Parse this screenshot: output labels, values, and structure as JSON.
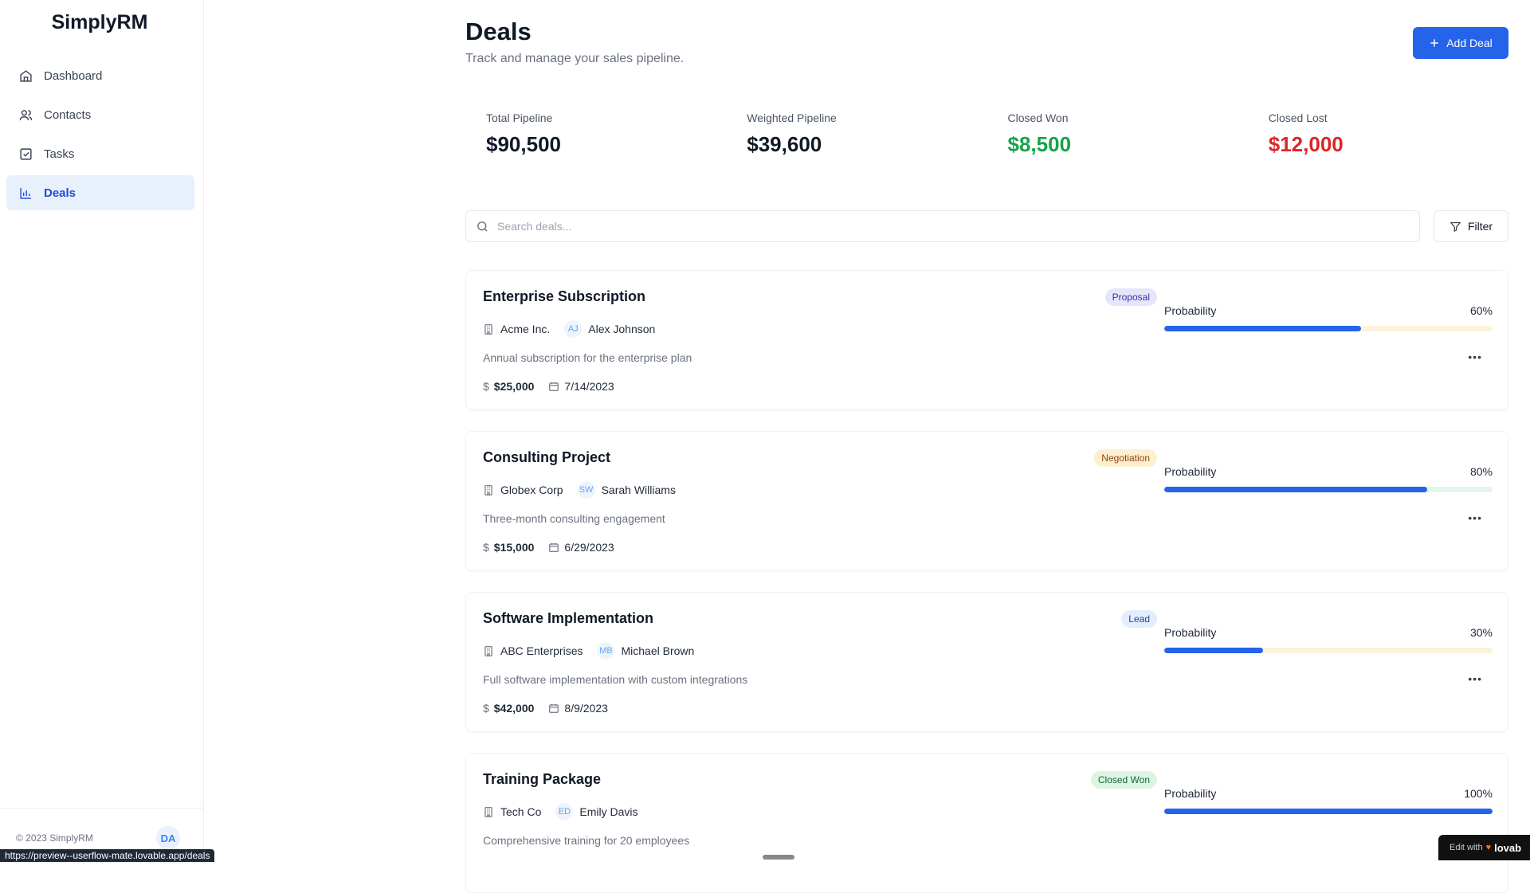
{
  "app": {
    "name": "SimplyRM",
    "copyright": "© 2023 SimplyRM",
    "user_initials": "DA",
    "status_url": "https://preview--userflow-mate.lovable.app/deals"
  },
  "sidebar": {
    "items": [
      {
        "label": "Dashboard",
        "icon": "home-icon"
      },
      {
        "label": "Contacts",
        "icon": "users-icon"
      },
      {
        "label": "Tasks",
        "icon": "check-square-icon"
      },
      {
        "label": "Deals",
        "icon": "bar-chart-icon",
        "active": true
      }
    ]
  },
  "header": {
    "title": "Deals",
    "subtitle": "Track and manage your sales pipeline.",
    "add_label": "Add Deal"
  },
  "stats": [
    {
      "label": "Total Pipeline",
      "value": "$90,500",
      "color": "#111827"
    },
    {
      "label": "Weighted Pipeline",
      "value": "$39,600",
      "color": "#111827"
    },
    {
      "label": "Closed Won",
      "value": "$8,500",
      "color": "#16a34a"
    },
    {
      "label": "Closed Lost",
      "value": "$12,000",
      "color": "#dc2626"
    }
  ],
  "search": {
    "placeholder": "Search deals...",
    "filter_label": "Filter"
  },
  "deals": [
    {
      "title": "Enterprise Subscription",
      "stage": "Proposal",
      "stage_bg": "#e6e6fb",
      "stage_fg": "#3730a3",
      "company": "Acme Inc.",
      "initials": "AJ",
      "contact": "Alex Johnson",
      "description": "Annual subscription for the enterprise plan",
      "amount": "$25,000",
      "date": "7/14/2023",
      "probability_label": "Probability",
      "probability": 60,
      "probability_text": "60%",
      "track": "#fdf3d9"
    },
    {
      "title": "Consulting Project",
      "stage": "Negotiation",
      "stage_bg": "#fdf0cf",
      "stage_fg": "#92400e",
      "company": "Globex Corp",
      "initials": "SW",
      "contact": "Sarah Williams",
      "description": "Three-month consulting engagement",
      "amount": "$15,000",
      "date": "6/29/2023",
      "probability_label": "Probability",
      "probability": 80,
      "probability_text": "80%",
      "track": "#e3f6ea"
    },
    {
      "title": "Software Implementation",
      "stage": "Lead",
      "stage_bg": "#e3edfc",
      "stage_fg": "#1e40af",
      "company": "ABC Enterprises",
      "initials": "MB",
      "contact": "Michael Brown",
      "description": "Full software implementation with custom integrations",
      "amount": "$42,000",
      "date": "8/9/2023",
      "probability_label": "Probability",
      "probability": 30,
      "probability_text": "30%",
      "track": "#fdf3d9"
    },
    {
      "title": "Training Package",
      "stage": "Closed Won",
      "stage_bg": "#dcf5e3",
      "stage_fg": "#166534",
      "company": "Tech Co",
      "initials": "ED",
      "contact": "Emily Davis",
      "description": "Comprehensive training for 20 employees",
      "amount": "",
      "date": "",
      "probability_label": "Probability",
      "probability": 100,
      "probability_text": "100%",
      "track": "#e3f6ea"
    }
  ],
  "overlay": {
    "edit_with": "Edit with",
    "brand": "lovab"
  }
}
